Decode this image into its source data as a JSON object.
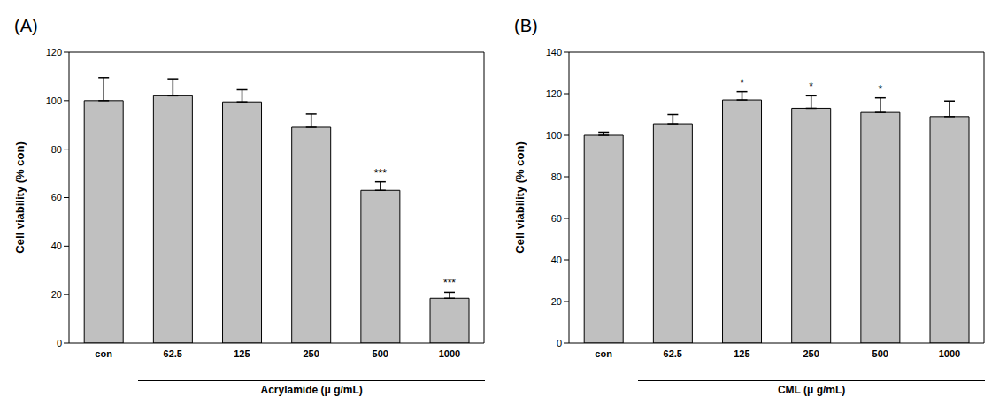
{
  "chart_data": [
    {
      "type": "bar",
      "title": "(A)",
      "x_label": "Acrylamide (μ g/mL)",
      "y_label": "Cell viability (% con)",
      "categories": [
        "con",
        "62.5",
        "125",
        "250",
        "500",
        "1000"
      ],
      "values": [
        100,
        102,
        99.5,
        89,
        63,
        18.5
      ],
      "errors": [
        9.5,
        7,
        5,
        5.5,
        3.5,
        2.5
      ],
      "significance": [
        null,
        null,
        null,
        null,
        "***",
        "***"
      ],
      "color": "#c0c0c0",
      "ylim": [
        0,
        120
      ],
      "yticks": [
        0,
        20,
        40,
        60,
        80,
        100,
        120
      ],
      "grid": false
    },
    {
      "type": "bar",
      "title": "(B)",
      "x_label": "CML (μ g/mL)",
      "y_label": "Cell viability (% con)",
      "categories": [
        "con",
        "62.5",
        "125",
        "250",
        "500",
        "1000"
      ],
      "values": [
        100,
        105.5,
        117,
        113,
        111,
        109
      ],
      "errors": [
        1.5,
        4.5,
        4,
        6,
        7,
        7.5
      ],
      "significance": [
        null,
        null,
        "*",
        "*",
        "*",
        null
      ],
      "color": "#c0c0c0",
      "ylim": [
        0,
        140
      ],
      "yticks": [
        0,
        20,
        40,
        60,
        80,
        100,
        120,
        140
      ],
      "grid": false
    }
  ]
}
